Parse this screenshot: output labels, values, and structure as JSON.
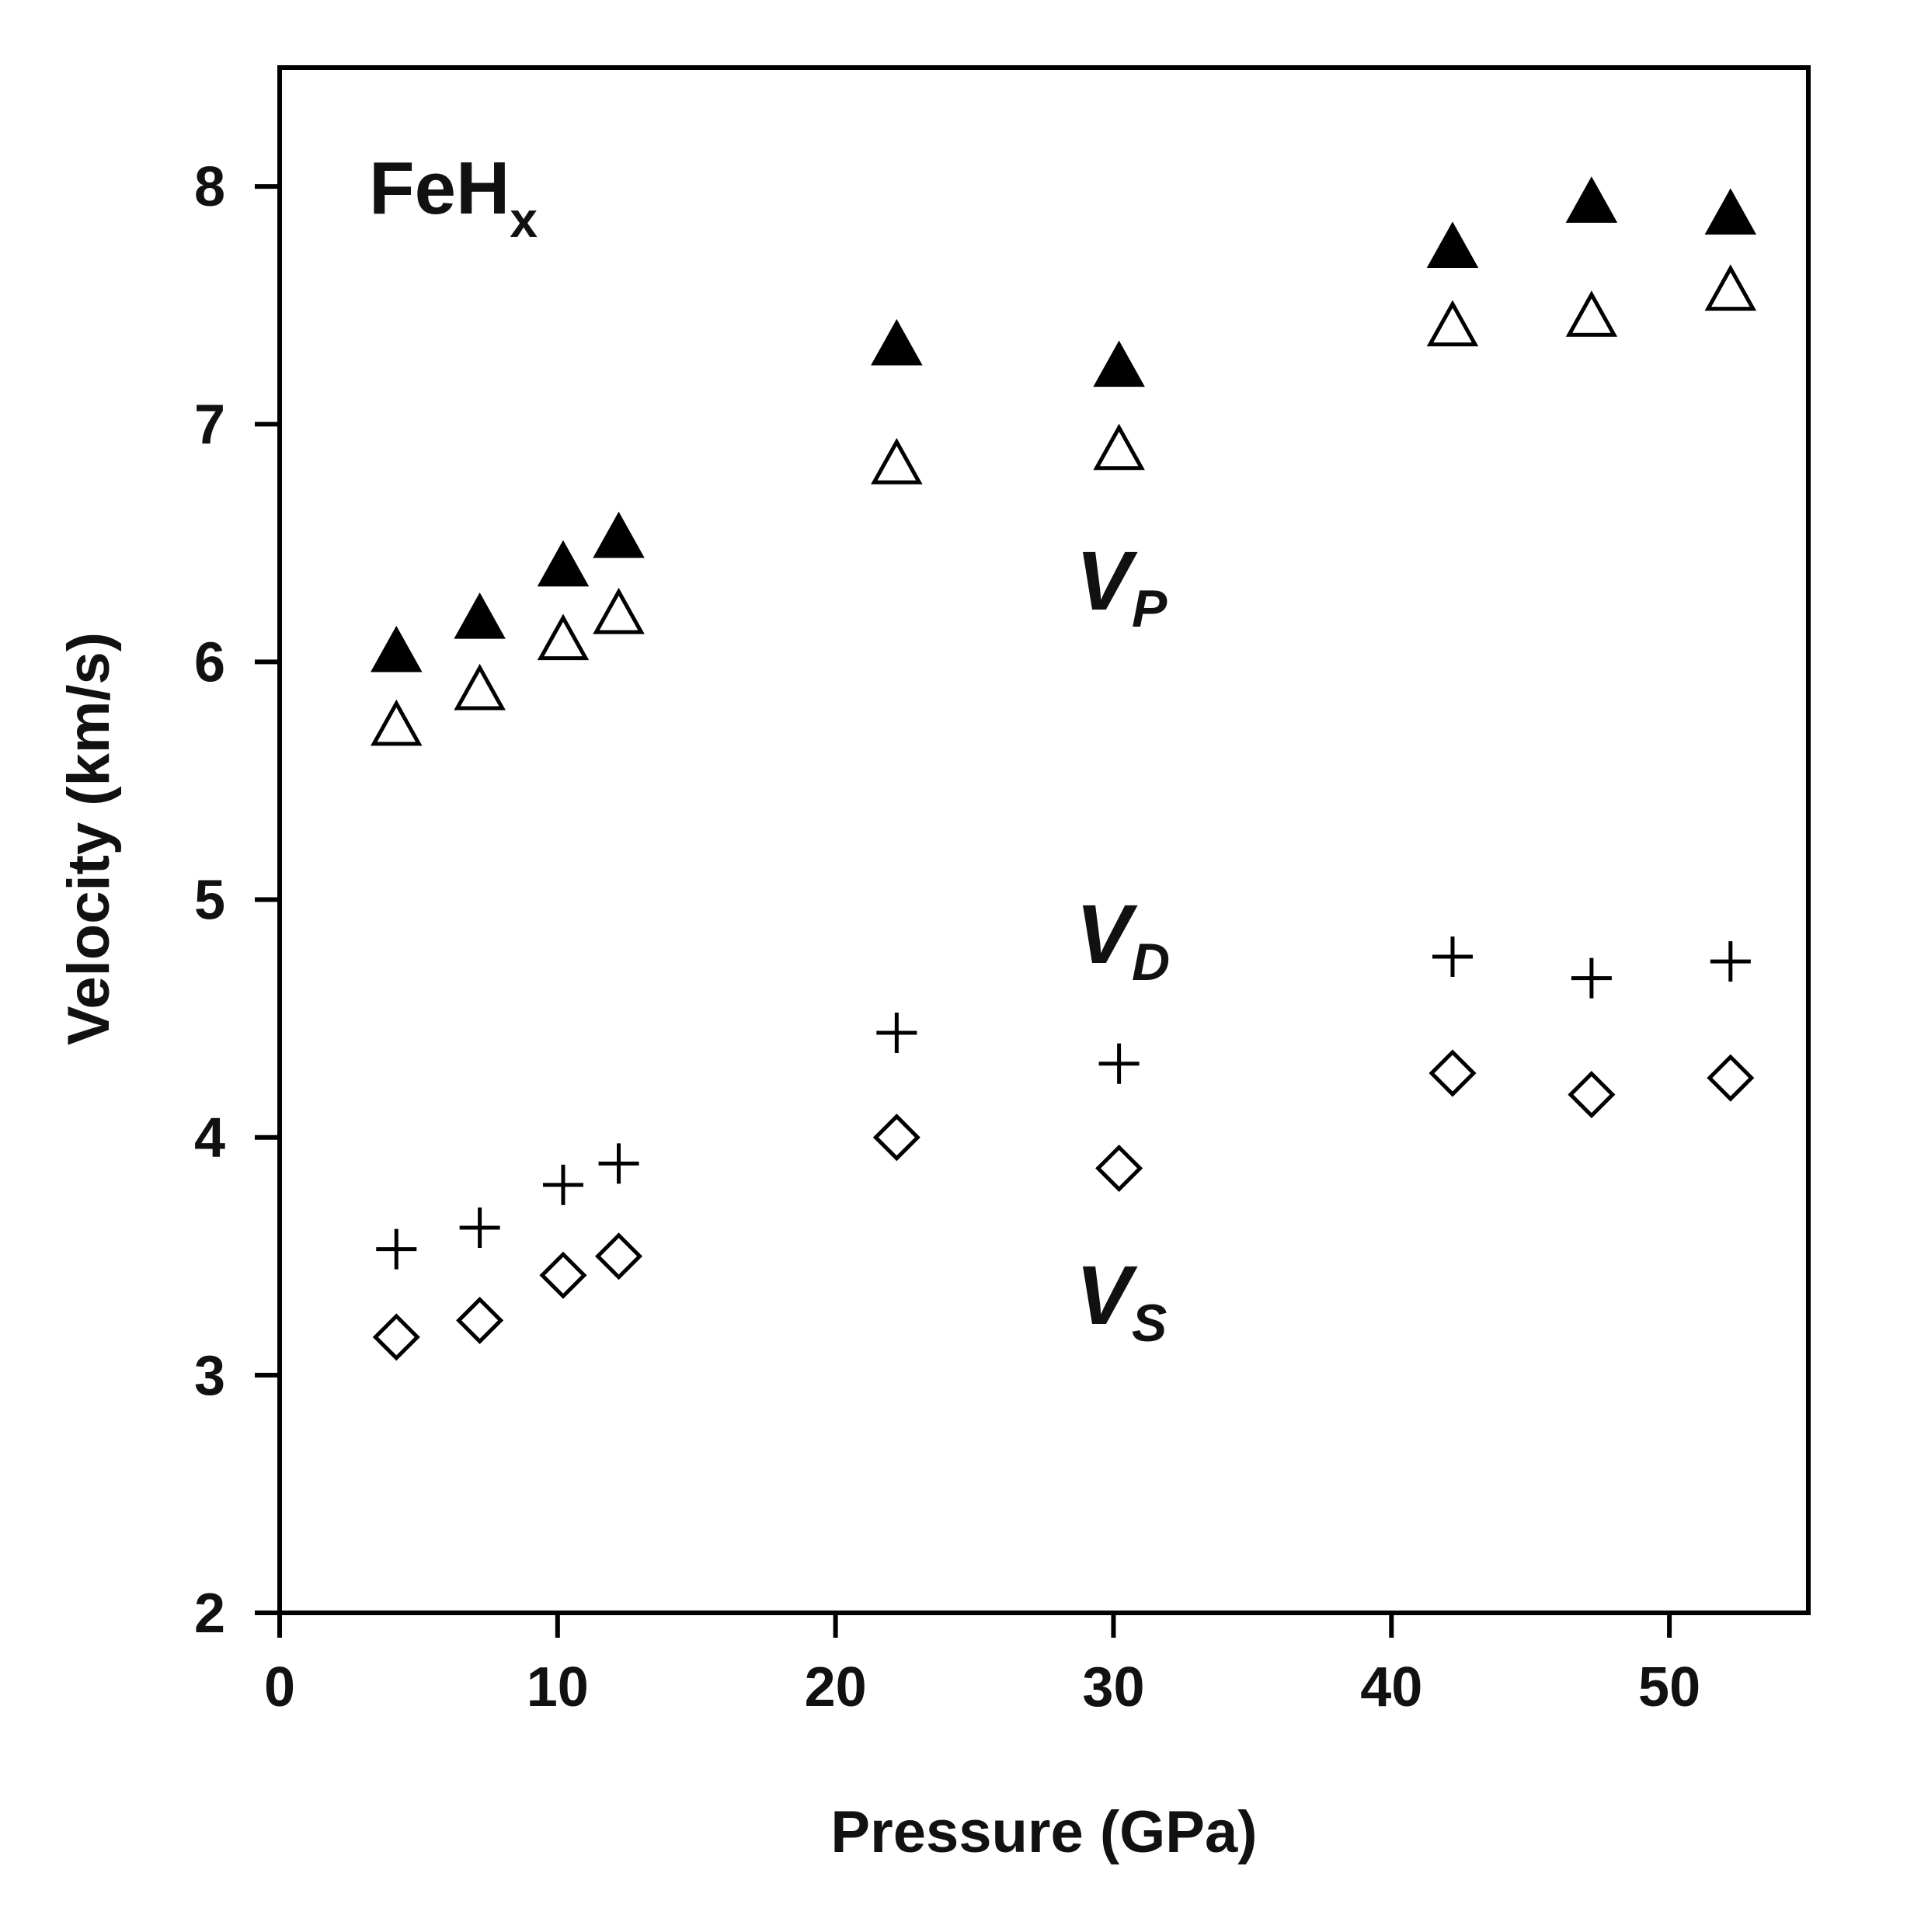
{
  "chart_data": {
    "type": "scatter",
    "xlabel": "Pressure (GPa)",
    "ylabel": "Velocity (km/s)",
    "xlim": [
      0,
      55
    ],
    "ylim": [
      2,
      8.5
    ],
    "xticks": [
      0,
      10,
      20,
      30,
      40,
      50
    ],
    "yticks": [
      2,
      3,
      4,
      5,
      6,
      7,
      8
    ],
    "grid": false,
    "annotations": {
      "material": {
        "base": "FeH",
        "sub": "x"
      },
      "vp": {
        "base": "V",
        "sub": "P"
      },
      "vd": {
        "base": "V",
        "sub": "D"
      },
      "vs": {
        "base": "V",
        "sub": "S"
      }
    },
    "series": [
      {
        "marker": "filled-triangle",
        "color": "#000000",
        "points": [
          [
            4.2,
            6.03
          ],
          [
            7.2,
            6.17
          ],
          [
            10.2,
            6.39
          ],
          [
            12.2,
            6.51
          ],
          [
            22.2,
            7.32
          ],
          [
            30.2,
            7.23
          ],
          [
            42.2,
            7.73
          ],
          [
            47.2,
            7.92
          ],
          [
            52.2,
            7.87
          ]
        ]
      },
      {
        "marker": "open-triangle",
        "color": "#000000",
        "points": [
          [
            4.2,
            5.72
          ],
          [
            7.2,
            5.87
          ],
          [
            10.2,
            6.08
          ],
          [
            12.2,
            6.19
          ],
          [
            22.2,
            6.82
          ],
          [
            30.2,
            6.88
          ],
          [
            42.2,
            7.4
          ],
          [
            47.2,
            7.44
          ],
          [
            52.2,
            7.55
          ]
        ]
      },
      {
        "marker": "plus",
        "color": "#000000",
        "points": [
          [
            4.2,
            3.53
          ],
          [
            7.2,
            3.62
          ],
          [
            10.2,
            3.8
          ],
          [
            12.2,
            3.89
          ],
          [
            22.2,
            4.44
          ],
          [
            30.2,
            4.31
          ],
          [
            42.2,
            4.76
          ],
          [
            47.2,
            4.67
          ],
          [
            52.2,
            4.74
          ]
        ]
      },
      {
        "marker": "open-diamond",
        "color": "#000000",
        "points": [
          [
            4.2,
            3.16
          ],
          [
            7.2,
            3.23
          ],
          [
            10.2,
            3.42
          ],
          [
            12.2,
            3.5
          ],
          [
            22.2,
            4.0
          ],
          [
            30.2,
            3.87
          ],
          [
            42.2,
            4.27
          ],
          [
            47.2,
            4.18
          ],
          [
            52.2,
            4.25
          ]
        ]
      }
    ]
  }
}
